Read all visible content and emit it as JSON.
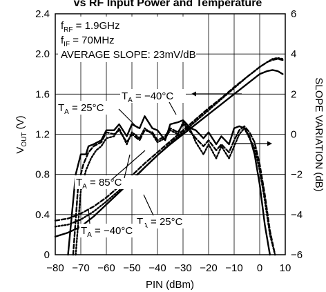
{
  "chart_data": {
    "type": "line",
    "title": "vs RF Input Power and Temperature",
    "xlabel": "PIN (dBm)",
    "ylabel": "V_OUT (V)",
    "y2label": "SLOPE VARIATION (dB)",
    "xlim": [
      -80,
      10
    ],
    "ylim": [
      0,
      2.4
    ],
    "y2lim": [
      -6,
      6
    ],
    "xticks": [
      -80,
      -70,
      -60,
      -50,
      -40,
      -30,
      -20,
      -10,
      0,
      10
    ],
    "yticks": [
      "0",
      "0.4",
      "0.8",
      "1.2",
      "1.6",
      "2.0",
      "2.4"
    ],
    "y2ticks": [
      "-6",
      "-4",
      "-2",
      "0",
      "2",
      "4",
      "6"
    ],
    "grid": true,
    "info_lines": [
      {
        "main": "f",
        "sub": "RF",
        "rest": " = 1.9GHz"
      },
      {
        "main": "f",
        "sub": "IF",
        "rest": " = 70MHz"
      },
      {
        "main": "AVERAGE SLOPE: 23mV/dB",
        "sub": "",
        "rest": ""
      }
    ],
    "annotations": [
      {
        "label": "T",
        "sub": "A",
        "rest": " = 25°C"
      },
      {
        "label": "T",
        "sub": "A",
        "rest": " = −40°C"
      },
      {
        "label": "T",
        "sub": "A",
        "rest": " = 85°C"
      },
      {
        "label": "T",
        "sub": "A",
        "rest": " = 25°C"
      },
      {
        "label": "T",
        "sub": "A",
        "rest": " = −40°C"
      }
    ],
    "series": [
      {
        "axis": "left",
        "style": "solid",
        "x": [
          -80,
          -75,
          -70,
          -65,
          -60,
          -55,
          -50,
          -45,
          -40,
          -35,
          -30,
          -25,
          -20,
          -15,
          -10,
          -5,
          0,
          3,
          5,
          7,
          9
        ],
        "values": [
          0.18,
          0.22,
          0.28,
          0.38,
          0.5,
          0.62,
          0.74,
          0.87,
          0.99,
          1.1,
          1.2,
          1.3,
          1.4,
          1.5,
          1.6,
          1.7,
          1.8,
          1.83,
          1.84,
          1.83,
          1.8
        ]
      },
      {
        "axis": "left",
        "style": "dashed",
        "x": [
          -80,
          -75,
          -70,
          -65,
          -60,
          -55,
          -50,
          -45,
          -40,
          -35,
          -30,
          -25,
          -20,
          -15,
          -10,
          -5,
          0,
          3,
          5,
          7,
          9
        ],
        "values": [
          0.34,
          0.36,
          0.41,
          0.48,
          0.57,
          0.68,
          0.79,
          0.91,
          1.02,
          1.13,
          1.24,
          1.35,
          1.46,
          1.56,
          1.67,
          1.77,
          1.87,
          1.92,
          1.94,
          1.95,
          1.94
        ]
      },
      {
        "axis": "left",
        "style": "dotted",
        "x": [
          -80,
          -75,
          -70,
          -65,
          -60,
          -55,
          -50,
          -45,
          -40,
          -35,
          -30,
          -25,
          -20,
          -15,
          -10,
          -5,
          0,
          3,
          5,
          7,
          9
        ],
        "values": [
          0.28,
          0.3,
          0.35,
          0.43,
          0.53,
          0.64,
          0.75,
          0.87,
          0.99,
          1.11,
          1.22,
          1.33,
          1.44,
          1.55,
          1.66,
          1.77,
          1.87,
          1.92,
          1.95,
          1.96,
          1.95
        ]
      },
      {
        "axis": "right",
        "style": "solid",
        "x": [
          -75,
          -72,
          -70,
          -68,
          -67,
          -65,
          -62,
          -60,
          -57,
          -55,
          -52,
          -50,
          -47,
          -45,
          -42,
          -40,
          -37,
          -35,
          -32,
          -30,
          -27,
          -25,
          -22,
          -20,
          -17,
          -15,
          -12,
          -10,
          -8,
          -6,
          -4,
          -2,
          0,
          2,
          4
        ],
        "values": [
          -6,
          -2,
          -1,
          -1,
          -0.6,
          -0.5,
          -0.3,
          0.2,
          0.2,
          0.5,
          -0.1,
          0.5,
          0.3,
          0.9,
          0.3,
          0.2,
          -0.3,
          0.5,
          0.6,
          0.7,
          0.3,
          0.2,
          -0.2,
          0.1,
          -0.5,
          -0.1,
          -0.5,
          0.3,
          0.4,
          0.3,
          -0.1,
          -1,
          -2.5,
          -4.5,
          -6
        ]
      },
      {
        "axis": "right",
        "style": "dashed",
        "x": [
          -73,
          -71,
          -69,
          -67,
          -65,
          -62,
          -60,
          -57,
          -55,
          -52,
          -50,
          -47,
          -45,
          -42,
          -40,
          -37,
          -35,
          -32,
          -30,
          -27,
          -25,
          -22,
          -20,
          -17,
          -15,
          -12,
          -10,
          -8,
          -6,
          -4,
          -2,
          0,
          2,
          4,
          6
        ],
        "values": [
          -6,
          -2.5,
          -1.5,
          -0.9,
          -0.6,
          -0.4,
          0.1,
          0,
          0.2,
          -0.4,
          0,
          -0.3,
          0.2,
          0.1,
          -0.3,
          -0.1,
          0.3,
          0.1,
          0.5,
          0.1,
          -0.2,
          -0.6,
          -0.3,
          -0.8,
          -0.5,
          -0.9,
          -0.3,
          0.2,
          0.4,
          0.1,
          -0.4,
          -1.5,
          -3,
          -4.8,
          -6
        ]
      },
      {
        "axis": "right",
        "style": "dotted",
        "x": [
          -72,
          -70,
          -68,
          -66,
          -64,
          -62,
          -60,
          -57,
          -55,
          -52,
          -50,
          -47,
          -45,
          -42,
          -40,
          -37,
          -35,
          -32,
          -30,
          -27,
          -25,
          -22,
          -20,
          -17,
          -15,
          -12,
          -10,
          -8,
          -6,
          -4,
          -2,
          0,
          2,
          4,
          6
        ],
        "values": [
          -6,
          -2.8,
          -1.8,
          -1.2,
          -0.8,
          -0.6,
          -0.2,
          -0.1,
          0.3,
          -0.5,
          0.1,
          -0.2,
          0.3,
          0,
          -0.4,
          -0.2,
          0.2,
          0,
          0.6,
          0.2,
          -0.4,
          -1,
          -0.5,
          -1.2,
          -0.6,
          -1.2,
          -0.6,
          0,
          0.3,
          -0.2,
          -0.7,
          -1.8,
          -3.3,
          -5,
          -6
        ]
      }
    ]
  }
}
